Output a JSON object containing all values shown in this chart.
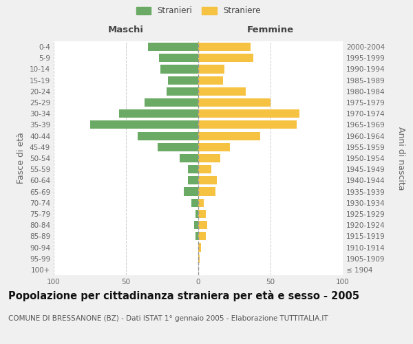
{
  "age_groups": [
    "100+",
    "95-99",
    "90-94",
    "85-89",
    "80-84",
    "75-79",
    "70-74",
    "65-69",
    "60-64",
    "55-59",
    "50-54",
    "45-49",
    "40-44",
    "35-39",
    "30-34",
    "25-29",
    "20-24",
    "15-19",
    "10-14",
    "5-9",
    "0-4"
  ],
  "birth_years": [
    "≤ 1904",
    "1905-1909",
    "1910-1914",
    "1915-1919",
    "1920-1924",
    "1925-1929",
    "1930-1934",
    "1935-1939",
    "1940-1944",
    "1945-1949",
    "1950-1954",
    "1955-1959",
    "1960-1964",
    "1965-1969",
    "1970-1974",
    "1975-1979",
    "1980-1984",
    "1985-1989",
    "1990-1994",
    "1995-1999",
    "2000-2004"
  ],
  "maschi": [
    0,
    0,
    0,
    2,
    3,
    2,
    5,
    10,
    7,
    7,
    13,
    28,
    42,
    75,
    55,
    37,
    22,
    21,
    26,
    27,
    35
  ],
  "femmine": [
    0,
    1,
    2,
    5,
    6,
    5,
    4,
    12,
    13,
    9,
    15,
    22,
    43,
    68,
    70,
    50,
    33,
    17,
    18,
    38,
    36
  ],
  "maschi_color": "#6aaa64",
  "femmine_color": "#f5c242",
  "background_color": "#f0f0f0",
  "plot_background": "#ffffff",
  "grid_color": "#cccccc",
  "title": "Popolazione per cittadinanza straniera per età e sesso - 2005",
  "subtitle": "COMUNE DI BRESSANONE (BZ) - Dati ISTAT 1° gennaio 2005 - Elaborazione TUTTITALIA.IT",
  "xlabel_left": "Maschi",
  "xlabel_right": "Femmine",
  "ylabel_left": "Fasce di età",
  "ylabel_right": "Anni di nascita",
  "legend_stranieri": "Stranieri",
  "legend_straniere": "Straniere",
  "xlim": 100,
  "title_fontsize": 10.5,
  "subtitle_fontsize": 7.5,
  "tick_fontsize": 7.5,
  "label_fontsize": 9,
  "header_fontsize": 9.5
}
